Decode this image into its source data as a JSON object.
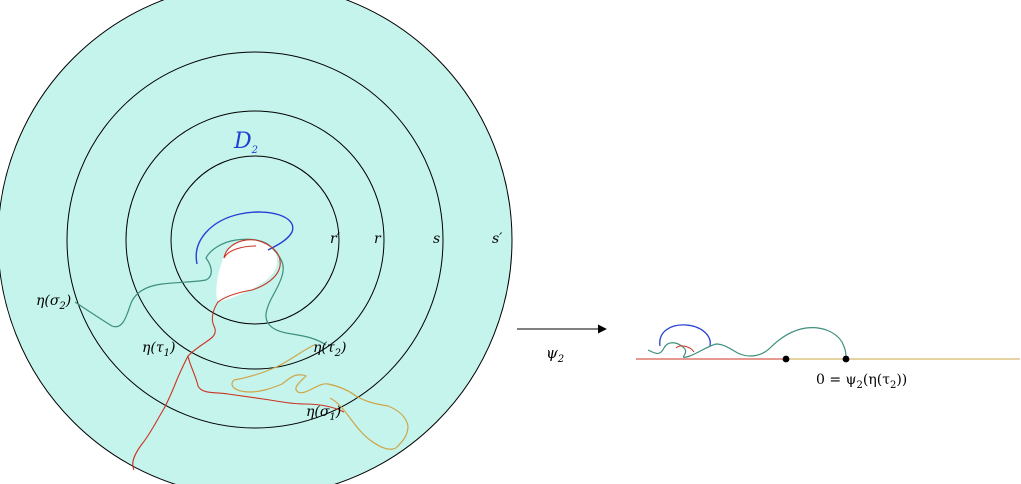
{
  "colors": {
    "disk_fill": "#c4f4ec",
    "circle_stroke": "#000000",
    "blue_curve": "#2a3fd6",
    "teal_curve": "#3e8f7e",
    "red_curve": "#cc3322",
    "orange_curve": "#cfa548",
    "marker": "#000000"
  },
  "left_figure": {
    "domain_label": {
      "base": "D",
      "sub": "2"
    },
    "radius_labels": {
      "r_prime": "r′",
      "r": "r",
      "s": "s",
      "s_prime": "s′"
    },
    "curve_labels": {
      "eta_sigma2": {
        "pre": "η(σ",
        "sub": "2",
        "post": ")"
      },
      "eta_tau1": {
        "pre": "η(τ",
        "sub": "1",
        "post": ")"
      },
      "eta_tau2": {
        "pre": "η(τ",
        "sub": "2",
        "post": ")"
      },
      "eta_sigma1": {
        "pre": "η(σ",
        "sub": "1",
        "post": ")"
      }
    }
  },
  "map_arrow": {
    "label": {
      "base": "ψ",
      "sub": "2"
    }
  },
  "right_figure": {
    "origin_label": {
      "pre": "0 = ψ",
      "sub": "2",
      "mid": "(η(τ",
      "sub2": "2",
      "post": "))"
    }
  }
}
